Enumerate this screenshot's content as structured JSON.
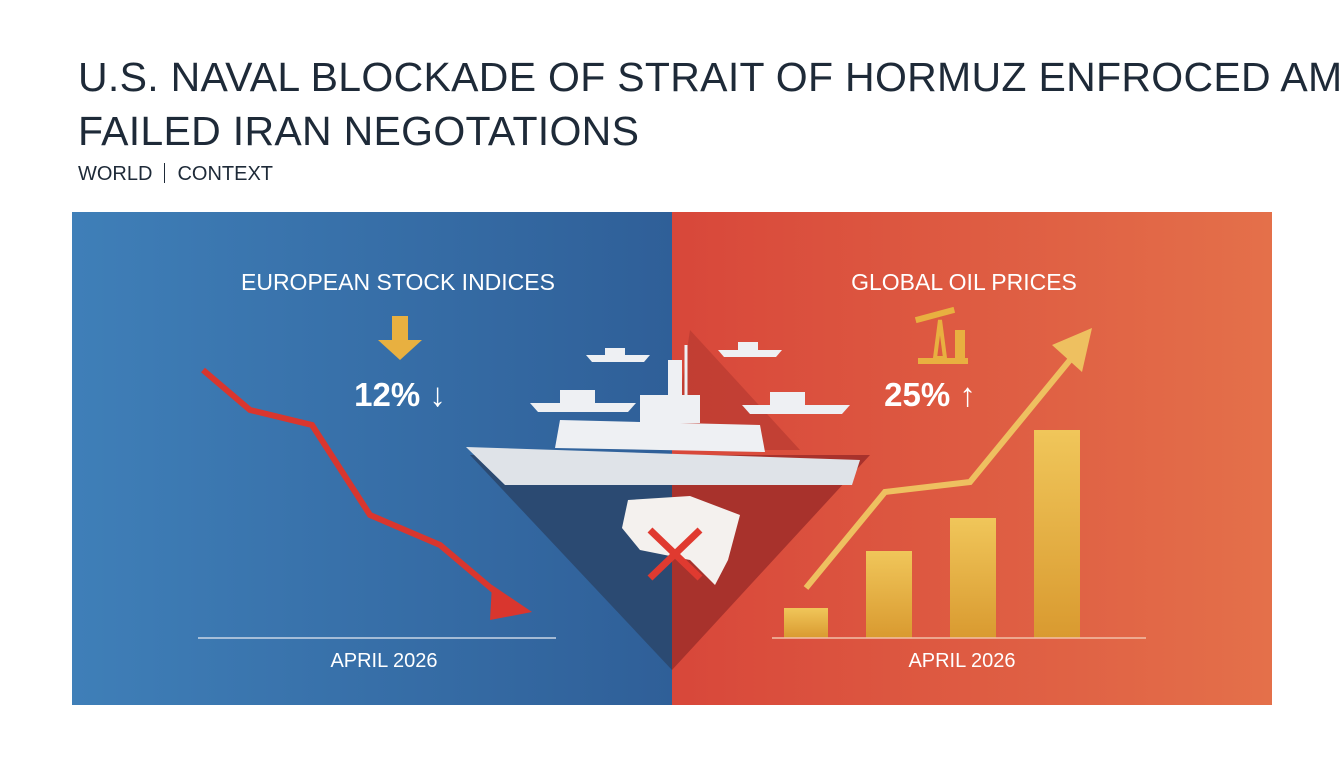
{
  "header": {
    "title_lines": [
      "U.S. NAVAL BLOCKADE OF STRAIT OF HORMUZ ENFROCED AMID",
      "FAILED IRAN NEGOTATIONS"
    ],
    "section": "WORLD",
    "tag": "CONTEXT"
  },
  "left_panel": {
    "heading": "EUROPEAN STOCK INDICES",
    "change": "12% ↓",
    "date": "APRIL 2026"
  },
  "right_panel": {
    "heading": "GLOBAL OIL PRICES",
    "change": "25% ↑",
    "date": "APRIL 2026"
  }
}
